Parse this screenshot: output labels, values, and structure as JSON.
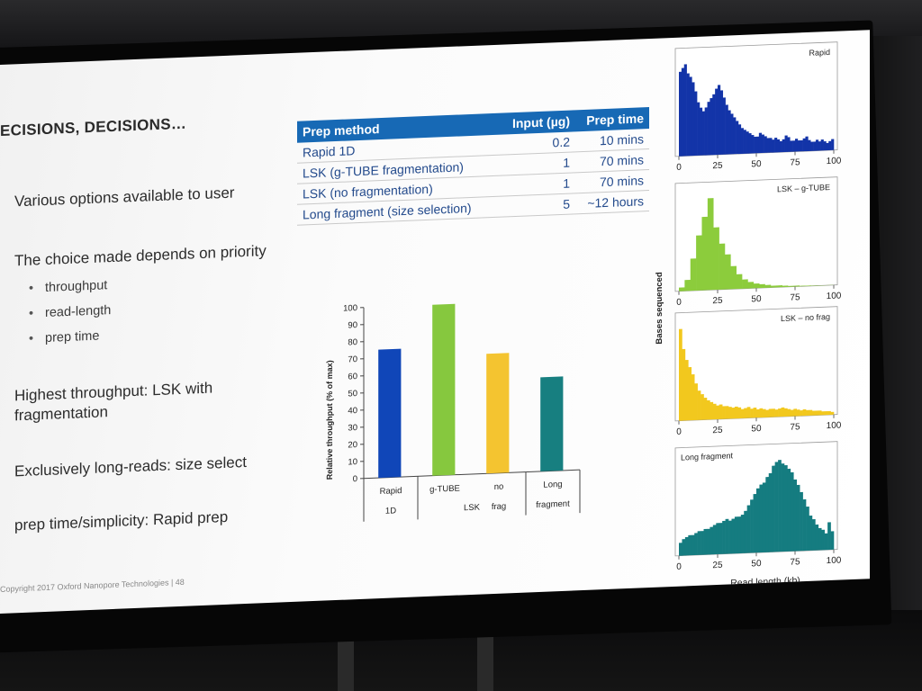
{
  "slide": {
    "title": "ECISIONS, DECISIONS…",
    "lines": [
      "Various options available to user",
      "The choice made depends on priority",
      "Highest throughput: LSK with fragmentation",
      "Exclusively long-reads: size select",
      "prep time/simplicity: Rapid prep"
    ],
    "bullets": [
      "throughput",
      "read-length",
      "prep time"
    ],
    "footer": "Copyright 2017 Oxford Nanopore Technologies  |  48"
  },
  "table": {
    "headers": [
      "Prep method",
      "Input (µg)",
      "Prep time"
    ],
    "rows": [
      [
        "Rapid 1D",
        "0.2",
        "10 mins"
      ],
      [
        "LSK (g-TUBE fragmentation)",
        "1",
        "70 mins"
      ],
      [
        "LSK (no fragmentation)",
        "1",
        "70 mins"
      ],
      [
        "Long fragment (size selection)",
        "5",
        "~12 hours"
      ]
    ]
  },
  "chart_data": [
    {
      "type": "bar",
      "ylabel": "Relative throughput (% of max)",
      "ylim": [
        0,
        100
      ],
      "yticks": [
        0,
        10,
        20,
        30,
        40,
        50,
        60,
        70,
        80,
        90,
        100
      ],
      "categories": [
        "Rapid 1D",
        "g-TUBE",
        "no frag",
        "Long fragment"
      ],
      "group_labels": [
        "LSK"
      ],
      "values": [
        75,
        100,
        70,
        55
      ],
      "colors": [
        "#1046b8",
        "#86c83e",
        "#f4c430",
        "#177f80"
      ]
    },
    {
      "type": "bar",
      "title": "Rapid",
      "xticks": [
        0,
        25,
        50,
        75,
        100
      ],
      "color": "#1334a8",
      "values": [
        92,
        96,
        100,
        90,
        86,
        80,
        70,
        58,
        52,
        48,
        52,
        58,
        62,
        66,
        72,
        76,
        70,
        62,
        54,
        48,
        44,
        40,
        36,
        32,
        28,
        26,
        24,
        22,
        20,
        18,
        18,
        22,
        20,
        18,
        16,
        16,
        14,
        16,
        14,
        12,
        14,
        18,
        16,
        12,
        12,
        14,
        12,
        12,
        14,
        16,
        12,
        10,
        10,
        12,
        10,
        12,
        10,
        8,
        10,
        12
      ]
    },
    {
      "type": "bar",
      "title": "LSK – g-TUBE",
      "xticks": [
        0,
        25,
        50,
        75,
        100
      ],
      "color": "#8ccc3c",
      "values": [
        4,
        12,
        35,
        60,
        80,
        100,
        68,
        50,
        38,
        25,
        16,
        10,
        7,
        5,
        4,
        3,
        2,
        2,
        1.5,
        1,
        1,
        0.6,
        0.5,
        0.3,
        0.3,
        0.2,
        0.2
      ]
    },
    {
      "type": "bar",
      "title": "LSK – no frag",
      "xticks": [
        0,
        25,
        50,
        75,
        100
      ],
      "color": "#f2c81e",
      "values": [
        100,
        78,
        66,
        58,
        50,
        40,
        32,
        28,
        24,
        21,
        19,
        17,
        15,
        16,
        14,
        14,
        13,
        12,
        13,
        12,
        10,
        11,
        12,
        10,
        11,
        9,
        10,
        9,
        8,
        9,
        9,
        8,
        9,
        10,
        9,
        8,
        7,
        8,
        7,
        6,
        7,
        6,
        6,
        5,
        5,
        5,
        4,
        4,
        4,
        3
      ]
    },
    {
      "type": "bar",
      "title": "Long fragment",
      "xticks": [
        0,
        25,
        50,
        75,
        100
      ],
      "xlabel": "Read length (kb)",
      "ylabel": "Bases sequenced",
      "color": "#157c80",
      "values": [
        14,
        18,
        20,
        22,
        22,
        24,
        26,
        26,
        28,
        28,
        30,
        32,
        34,
        34,
        36,
        38,
        36,
        38,
        40,
        40,
        42,
        46,
        52,
        58,
        64,
        70,
        74,
        76,
        82,
        86,
        94,
        98,
        100,
        96,
        94,
        90,
        86,
        78,
        72,
        64,
        56,
        48,
        38,
        34,
        28,
        24,
        22,
        18,
        30,
        20
      ]
    }
  ]
}
